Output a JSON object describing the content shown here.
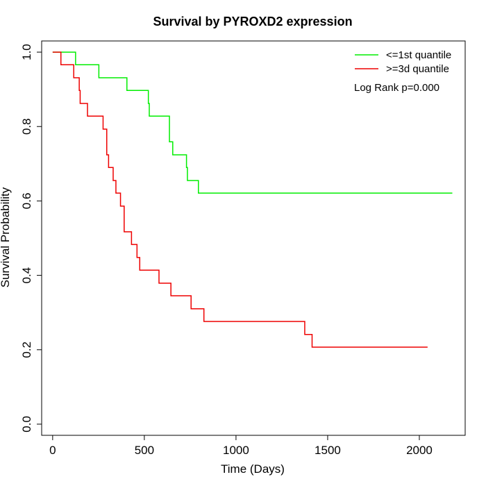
{
  "chart_data": {
    "type": "line",
    "title": "Survival by PYROXD2 expression",
    "xlabel": "Time (Days)",
    "ylabel": "Survival Probability",
    "xlim": [
      -60,
      2250
    ],
    "ylim": [
      -0.03,
      1.03
    ],
    "xticks": [
      0,
      500,
      1000,
      1500,
      2000
    ],
    "yticks": [
      0.0,
      0.2,
      0.4,
      0.6,
      0.8,
      1.0
    ],
    "xtick_labels": [
      "0",
      "500",
      "1000",
      "1500",
      "2000"
    ],
    "ytick_labels": [
      "0.0",
      "0.2",
      "0.4",
      "0.6",
      "0.8",
      "1.0"
    ],
    "grid": false,
    "legend_position": "top-right",
    "annotation": "Log Rank p=0.000",
    "series": [
      {
        "name": "<=1st quantile",
        "color": "#00ee00",
        "steps": [
          [
            0,
            1.0
          ],
          [
            125,
            0.966
          ],
          [
            252,
            0.931
          ],
          [
            405,
            0.897
          ],
          [
            522,
            0.862
          ],
          [
            527,
            0.828
          ],
          [
            637,
            0.759
          ],
          [
            655,
            0.724
          ],
          [
            730,
            0.69
          ],
          [
            735,
            0.655
          ],
          [
            795,
            0.621
          ],
          [
            2180,
            0.621
          ]
        ]
      },
      {
        "name": ">=3d quantile",
        "color": "#ee0000",
        "steps": [
          [
            0,
            1.0
          ],
          [
            45,
            0.966
          ],
          [
            115,
            0.931
          ],
          [
            145,
            0.897
          ],
          [
            150,
            0.862
          ],
          [
            190,
            0.828
          ],
          [
            275,
            0.793
          ],
          [
            295,
            0.724
          ],
          [
            305,
            0.69
          ],
          [
            330,
            0.655
          ],
          [
            345,
            0.621
          ],
          [
            370,
            0.586
          ],
          [
            390,
            0.517
          ],
          [
            430,
            0.483
          ],
          [
            460,
            0.448
          ],
          [
            475,
            0.414
          ],
          [
            580,
            0.379
          ],
          [
            645,
            0.345
          ],
          [
            755,
            0.31
          ],
          [
            825,
            0.276
          ],
          [
            1375,
            0.241
          ],
          [
            1415,
            0.207
          ],
          [
            2045,
            0.207
          ]
        ]
      }
    ]
  }
}
